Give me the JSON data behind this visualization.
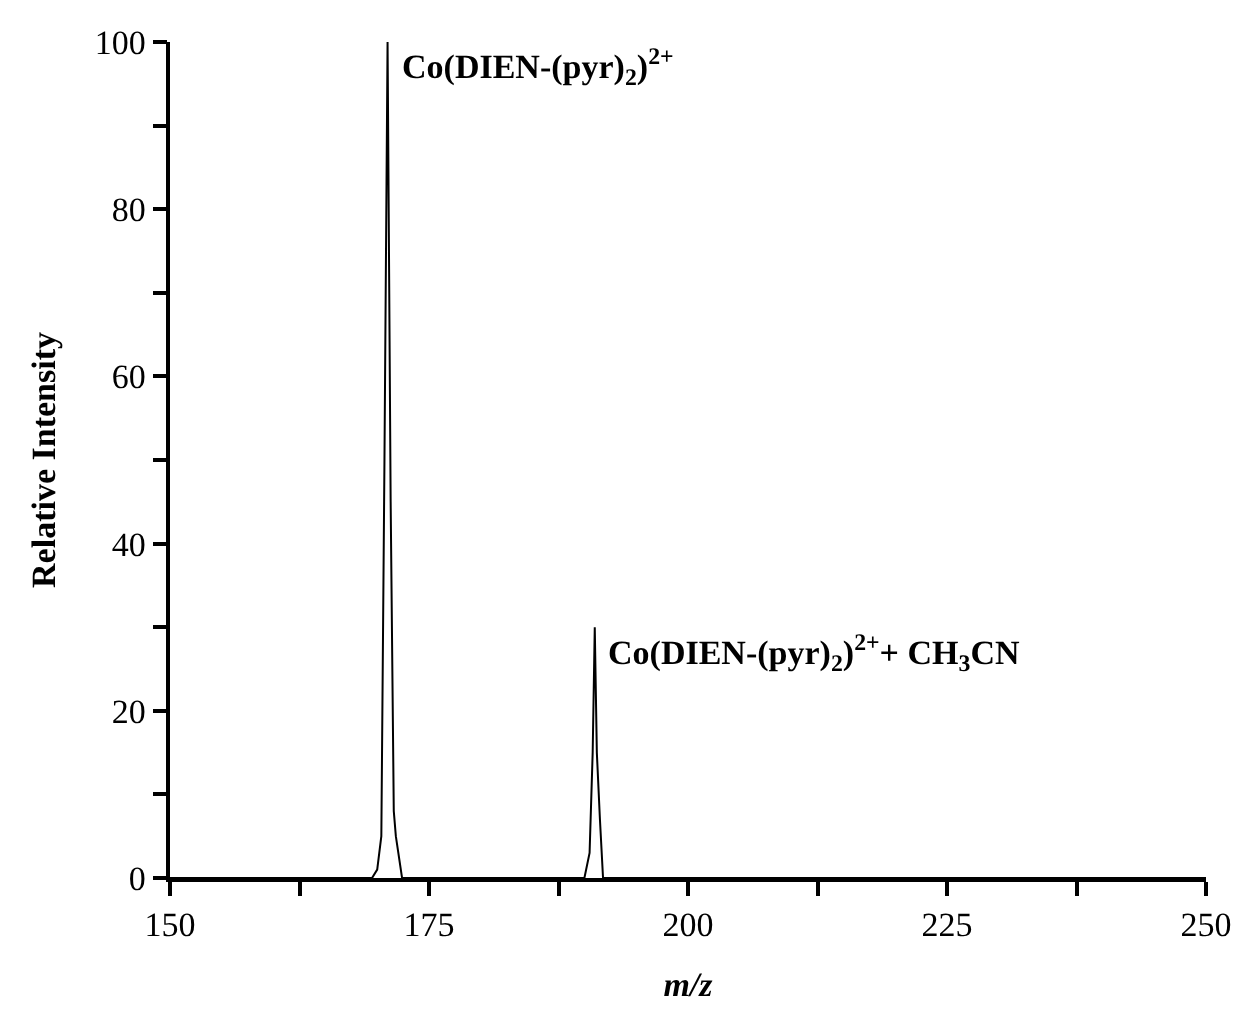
{
  "chart_data": {
    "type": "line",
    "xlabel": "m/z",
    "ylabel": "Relative Intensity",
    "x": [
      150,
      169.5,
      170.0,
      170.4,
      170.7,
      171.0,
      171.3,
      171.6,
      171.8,
      172.4,
      190.0,
      190.5,
      190.8,
      191.0,
      191.2,
      191.5,
      191.8,
      250
    ],
    "series": [
      {
        "color": "#000000",
        "values": [
          0,
          0,
          1,
          5,
          50,
          100,
          45,
          8,
          5,
          0,
          0,
          3,
          15,
          30,
          15,
          7,
          0,
          0
        ]
      }
    ],
    "xlim": [
      150,
      250
    ],
    "ylim": [
      0,
      100
    ],
    "xticks": [
      150,
      {
        "value": 162.5,
        "label": null
      },
      175,
      {
        "value": 187.5,
        "label": null
      },
      200,
      {
        "value": 212.5,
        "label": null
      },
      225,
      {
        "value": 237.5,
        "label": null
      },
      250
    ],
    "yticks": [
      0,
      {
        "value": 10,
        "label": null
      },
      20,
      {
        "value": 30,
        "label": null
      },
      40,
      {
        "value": 50,
        "label": null
      },
      60,
      {
        "value": 70,
        "label": null
      },
      80,
      {
        "value": 90,
        "label": null
      },
      100
    ],
    "annotations": [
      {
        "text": "Co(DIEN-(pyr)$_{2}$)$^{2+}$",
        "x": 171,
        "y": 100
      },
      {
        "text": "Co(DIEN-(pyr)$_{2}$)$^{2+}$+ CH$_{3}$CN",
        "x": 191,
        "y": 30
      }
    ],
    "marker": "none",
    "line_style": "solid"
  }
}
